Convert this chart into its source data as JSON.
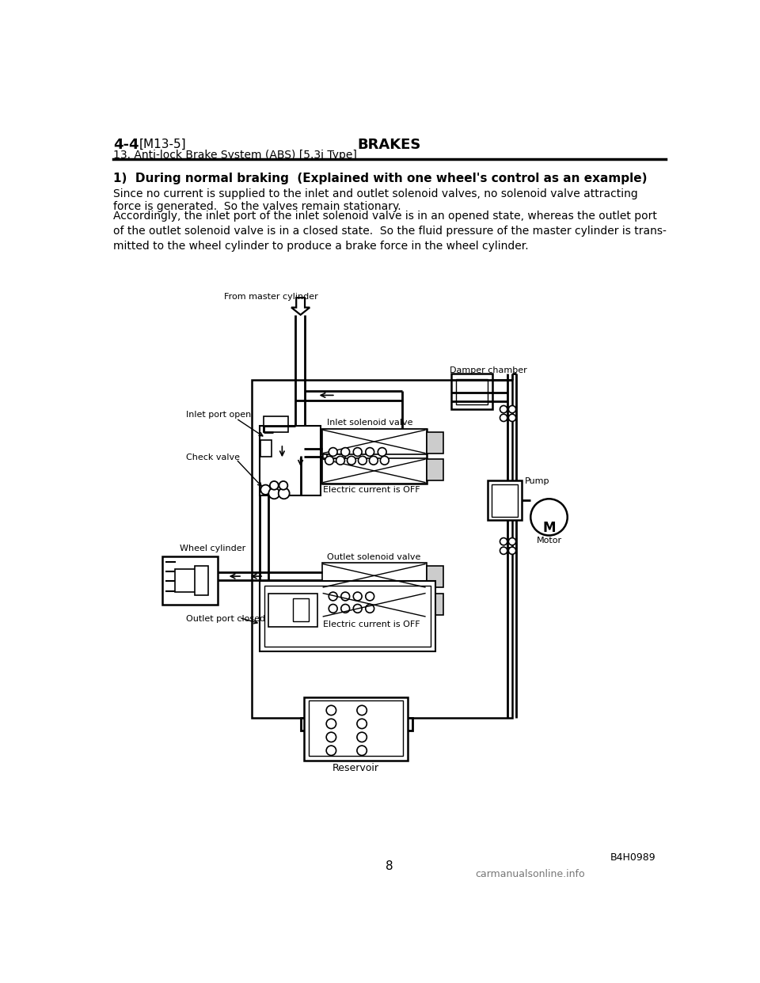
{
  "page_bg": "#ffffff",
  "header_left_bold": "4-4",
  "header_left_bracket": "[M13-5]",
  "header_center": "BRAKES",
  "header_sub": "13. Anti-lock Brake System (ABS) [5.3i Type]",
  "section_title": "1)  During normal braking  (Explained with one wheel's control as an example)",
  "paragraph1": "Since no current is supplied to the inlet and outlet solenoid valves, no solenoid valve attracting\nforce is generated.  So the valves remain stationary.",
  "paragraph2": "Accordingly, the inlet port of the inlet solenoid valve is in an opened state, whereas the outlet port\nof the outlet solenoid valve is in a closed state.  So the fluid pressure of the master cylinder is trans-\nmitted to the wheel cylinder to produce a brake force in the wheel cylinder.",
  "footer_page": "8",
  "footer_code": "B4H0989",
  "watermark": "carmanualsonline.info",
  "label_from_master": "From master cylinder",
  "label_inlet_port": "Inlet port open",
  "label_check_valve": "Check valve",
  "label_inlet_sol": "Inlet solenoid valve",
  "label_elec_off_inlet": "Electric current is OFF",
  "label_damper": "Damper chamber",
  "label_pump": "Pump",
  "label_motor": "Motor",
  "label_wheel_cyl": "Wheel cylinder",
  "label_outlet_sol": "Outlet solenoid valve",
  "label_elec_off_outlet": "Electric current is OFF",
  "label_outlet_port": "Outlet port closed",
  "label_reservoir": "Reservoir"
}
